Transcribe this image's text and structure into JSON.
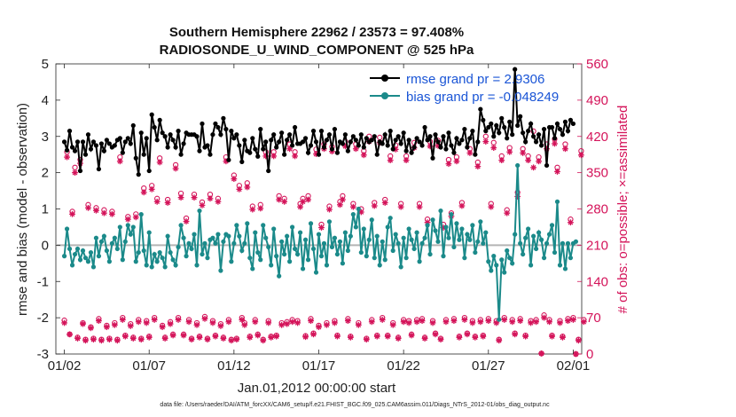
{
  "chart_data": {
    "type": "line",
    "title_line1": "Southern Hemisphere 22962 / 23573 = 97.408%",
    "title_line2": "RADIOSONDE_U_WIND_COMPONENT @ 525 hPa",
    "xlabel": "Jan.01,2012 00:00:00 start",
    "ylabel_left": "rmse and bias (model - observation)",
    "ylabel_right": "# of obs: o=possible; ×=assimilated",
    "footnote": "data file: /Users/raeder/DAI/ATM_forcXX/CAM6_setup/f.e21.FHIST_BGC.f09_025.CAM6assim.011/Diags_NTrS_2012-01/obs_diag_output.nc",
    "x_range": [
      0.5,
      31.5
    ],
    "xticks": [
      {
        "value": 1,
        "label": "01/02"
      },
      {
        "value": 6,
        "label": "01/07"
      },
      {
        "value": 11,
        "label": "01/12"
      },
      {
        "value": 16,
        "label": "01/17"
      },
      {
        "value": 21,
        "label": "01/22"
      },
      {
        "value": 26,
        "label": "01/27"
      },
      {
        "value": 31,
        "label": "02/01"
      }
    ],
    "ylim_left": [
      -3,
      5
    ],
    "yticks_left": [
      "-3",
      "-2",
      "-1",
      "0",
      "1",
      "2",
      "3",
      "4",
      "5"
    ],
    "ylim_right": [
      0,
      560
    ],
    "yticks_right": [
      "0",
      "70",
      "140",
      "210",
      "280",
      "350",
      "420",
      "490",
      "560"
    ],
    "legend": [
      {
        "label": "rmse grand pr = 2.9306",
        "color": "#000000"
      },
      {
        "label": "bias grand pr = -0.048249",
        "color": "#1b8a8a"
      }
    ],
    "colors": {
      "rmse": "#000000",
      "bias": "#1b8a8a",
      "obs": "#d4145a",
      "zero_line": "#b4b4b4"
    },
    "series": [
      {
        "name": "rmse",
        "values": [
          2.85,
          2.62,
          3.15,
          2.7,
          2.6,
          2.85,
          2.05,
          2.85,
          2.5,
          3.05,
          2.65,
          2.85,
          2.75,
          2.1,
          2.8,
          2.6,
          2.9,
          2.8,
          2.7,
          2.75,
          2.9,
          2.95,
          2.55,
          2.85,
          2.95,
          2.8,
          3.3,
          2.4,
          1.95,
          3.1,
          2.5,
          2.95,
          2.05,
          3.6,
          3.25,
          2.9,
          3.45,
          3.1,
          3.0,
          2.7,
          3.05,
          2.9,
          2.7,
          3.15,
          2.5,
          2.8,
          3.1,
          3.05,
          3.05,
          3.05,
          3.0,
          2.6,
          3.35,
          2.7,
          2.75,
          2.5,
          3.05,
          3.35,
          3.25,
          3.05,
          3.5,
          3.2,
          2.35,
          3.15,
          2.95,
          3.05,
          2.75,
          2.3,
          2.9,
          2.6,
          2.55,
          2.95,
          2.65,
          2.45,
          3.2,
          2.65,
          2.85,
          2.05,
          2.9,
          3.05,
          2.7,
          2.85,
          3.1,
          2.5,
          2.9,
          3.05,
          2.75,
          3.25,
          2.8,
          2.8,
          2.85,
          2.95,
          2.55,
          2.75,
          3.15,
          2.85,
          2.5,
          3.15,
          2.7,
          2.9,
          3.05,
          2.65,
          3.2,
          2.55,
          2.85,
          2.8,
          3.05,
          2.6,
          2.85,
          3.0,
          2.9,
          2.75,
          3.05,
          2.7,
          2.95,
          2.85,
          2.9,
          3.0,
          2.5,
          2.85,
          2.8,
          3.05,
          2.75,
          3.15,
          2.65,
          2.9,
          3.0,
          2.8,
          3.1,
          2.6,
          2.9,
          2.55,
          2.7,
          2.95,
          2.85,
          2.75,
          3.25,
          2.9,
          3.0,
          2.4,
          3.05,
          2.85,
          2.7,
          3.0,
          2.65,
          3.1,
          2.75,
          2.55,
          2.95,
          2.8,
          2.9,
          3.2,
          2.7,
          2.95,
          3.15,
          2.5,
          2.85,
          3.75,
          3.45,
          3.15,
          3.25,
          3.35,
          3.0,
          3.3,
          3.1,
          3.5,
          3.25,
          2.95,
          3.4,
          3.05,
          4.85,
          3.3,
          3.55,
          3.1,
          2.85,
          3.15,
          3.35,
          3.0,
          2.85,
          3.05,
          2.75,
          3.2,
          2.2,
          3.25,
          3.25,
          2.95,
          3.35,
          3.2,
          3.05,
          3.4,
          3.15,
          3.45,
          3.35
        ]
      },
      {
        "name": "bias",
        "values": [
          -0.3,
          0.45,
          -0.1,
          -0.55,
          -0.25,
          -0.1,
          -0.4,
          -0.15,
          -0.35,
          -0.45,
          -0.2,
          -0.6,
          0.2,
          -0.3,
          0.1,
          0.25,
          -0.15,
          -0.45,
          0.05,
          0.2,
          -0.1,
          0.5,
          -0.4,
          0.1,
          0.55,
          0.3,
          0.5,
          -0.45,
          -0.2,
          0.85,
          -0.15,
          -0.55,
          0.35,
          -0.6,
          -0.25,
          -0.45,
          -0.2,
          -0.35,
          -0.6,
          0.25,
          -0.2,
          -0.4,
          -0.55,
          -0.05,
          0.55,
          0.2,
          -0.3,
          0.05,
          -0.1,
          0.3,
          -0.55,
          0.95,
          -0.25,
          0.05,
          -0.35,
          0.15,
          0.2,
          0.05,
          0.3,
          -0.7,
          0.1,
          0.3,
          0.25,
          -0.45,
          0.05,
          0.55,
          0.25,
          -0.15,
          0.05,
          0.6,
          -0.35,
          -0.65,
          0.35,
          -0.2,
          -0.4,
          0.55,
          0.2,
          -0.05,
          -0.55,
          0.45,
          -0.3,
          -0.85,
          0.1,
          -0.25,
          0.25,
          -0.45,
          0.5,
          -0.1,
          -0.25,
          0.35,
          -0.65,
          0.15,
          -0.4,
          0.6,
          -0.1,
          -0.75,
          0.3,
          -0.3,
          0.05,
          -0.55,
          0.65,
          -0.05,
          0.2,
          -0.25,
          0.1,
          -0.5,
          0.35,
          -0.15,
          0.25,
          0.85,
          0.5,
          1.0,
          -0.2,
          0.45,
          -0.3,
          0.15,
          0.7,
          -0.35,
          0.25,
          -0.55,
          0.1,
          -0.4,
          0.5,
          0.75,
          -0.15,
          0.3,
          0.05,
          -0.6,
          0.2,
          -0.35,
          0.45,
          0.15,
          -0.1,
          0.35,
          -0.45,
          0.05,
          0.2,
          0.55,
          -0.25,
          0.7,
          0.4,
          0.1,
          0.95,
          -0.3,
          0.5,
          0.2,
          0.85,
          -0.05,
          0.6,
          0.15,
          0.45,
          -0.35,
          0.3,
          0.15,
          0.55,
          -0.2,
          0.1,
          0.65,
          0.05,
          0.35,
          -0.45,
          -0.7,
          -0.3,
          -0.55,
          -2.05,
          -0.4,
          -0.75,
          -0.15,
          -0.35,
          -0.5,
          0.3,
          2.2,
          0.05,
          -0.25,
          0.2,
          0.45,
          -0.55,
          0.25,
          -0.1,
          0.35,
          0.15,
          -0.35,
          0.05,
          0.3,
          0.55,
          -0.2,
          1.2,
          -0.55,
          0.05,
          -0.65,
          0.05,
          -0.35,
          0.05,
          0.1
        ]
      },
      {
        "name": "obs_possible",
        "values": [
          65,
          390,
          38,
          275,
          360,
          32,
          375,
          60,
          28,
          288,
          52,
          30,
          282,
          68,
          28,
          278,
          55,
          30,
          275,
          60,
          28,
          380,
          70,
          36,
          265,
          58,
          32,
          270,
          66,
          30,
          320,
          64,
          34,
          325,
          70,
          300,
          378,
          55,
          32,
          298,
          62,
          38,
          365,
          70,
          310,
          38,
          262,
          66,
          30,
          308,
          60,
          34,
          293,
          72,
          30,
          308,
          64,
          36,
          300,
          58,
          32,
          380,
          66,
          28,
          345,
          30,
          325,
          70,
          60,
          330,
          34,
          285,
          66,
          38,
          288,
          28,
          390,
          64,
          34,
          390,
          36,
          305,
          60,
          300,
          62,
          405,
          66,
          390,
          64,
          290,
          300,
          35,
          305,
          68,
          40,
          395,
          55,
          250,
          405,
          60,
          285,
          400,
          64,
          36,
          294,
          305,
          410,
          68,
          34,
          290,
          405,
          60,
          280,
          392,
          30,
          420,
          66,
          292,
          36,
          418,
          70,
          298,
          36,
          382,
          60,
          403,
          32,
          290,
          66,
          382,
          64,
          38,
          408,
          66,
          290,
          68,
          32,
          260,
          410,
          64,
          40,
          412,
          30,
          250,
          66,
          375,
          272,
          68,
          380,
          34,
          292,
          70,
          40,
          396,
          64,
          34,
          370,
          66,
          36,
          420,
          68,
          290,
          408,
          64,
          28,
          382,
          70,
          278,
          398,
          66,
          40,
          312,
          68,
          396,
          36,
          382,
          64,
          430,
          66,
          380,
          1,
          75,
          405,
          66,
          36,
          415,
          360,
          64,
          34,
          405,
          68,
          260,
          70,
          0,
          28,
          392,
          66
        ]
      },
      {
        "name": "obs_assimilated",
        "values": [
          60,
          380,
          38,
          270,
          350,
          30,
          368,
          58,
          26,
          282,
          50,
          28,
          277,
          64,
          26,
          272,
          52,
          28,
          270,
          56,
          26,
          372,
          66,
          34,
          260,
          54,
          30,
          264,
          62,
          28,
          312,
          60,
          32,
          318,
          66,
          294,
          370,
          52,
          30,
          292,
          58,
          36,
          358,
          66,
          302,
          36,
          256,
          62,
          28,
          302,
          56,
          32,
          287,
          68,
          28,
          300,
          60,
          34,
          294,
          54,
          30,
          372,
          62,
          26,
          338,
          28,
          318,
          66,
          56,
          322,
          32,
          279,
          62,
          36,
          281,
          26,
          382,
          60,
          32,
          382,
          34,
          298,
          56,
          294,
          58,
          396,
          62,
          382,
          60,
          284,
          294,
          33,
          298,
          64,
          38,
          386,
          52,
          244,
          396,
          56,
          279,
          391,
          60,
          34,
          288,
          298,
          401,
          64,
          32,
          284,
          396,
          56,
          274,
          384,
          28,
          410,
          62,
          286,
          34,
          408,
          66,
          292,
          34,
          374,
          56,
          395,
          30,
          284,
          62,
          374,
          60,
          36,
          398,
          62,
          284,
          64,
          30,
          254,
          401,
          60,
          38,
          402,
          28,
          244,
          62,
          367,
          266,
          64,
          372,
          32,
          286,
          66,
          38,
          388,
          60,
          32,
          362,
          62,
          34,
          410,
          64,
          284,
          398,
          60,
          26,
          374,
          66,
          272,
          390,
          62,
          38,
          304,
          64,
          388,
          34,
          374,
          60,
          360,
          62,
          372,
          1,
          70,
          396,
          62,
          34,
          406,
          352,
          60,
          32,
          396,
          64,
          254,
          66,
          0,
          26,
          384,
          62
        ]
      }
    ]
  }
}
